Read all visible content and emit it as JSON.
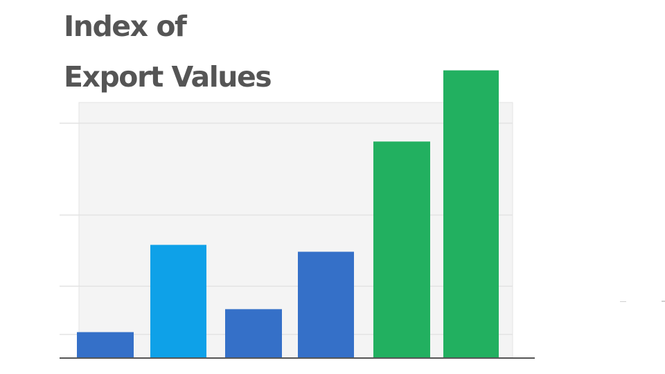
{
  "chart_data": {
    "type": "bar",
    "title": "Index of\nExport Values",
    "xlabel": "",
    "ylabel": "",
    "categories": [
      "",
      "",
      "",
      "",
      "",
      ""
    ],
    "values": [
      11,
      49,
      21,
      46,
      94,
      125
    ],
    "ylim": [
      0,
      130
    ],
    "gridlines": [
      10,
      31,
      62,
      102
    ],
    "grid": true,
    "legend": "none",
    "colors": [
      "#3570c8",
      "#0ea1e8",
      "#3570c8",
      "#3570c8",
      "#22b060",
      "#22b060"
    ],
    "grid_color": "#e3e3e3",
    "plot_background": "#f4f4f4",
    "axis_color": "#555555"
  }
}
